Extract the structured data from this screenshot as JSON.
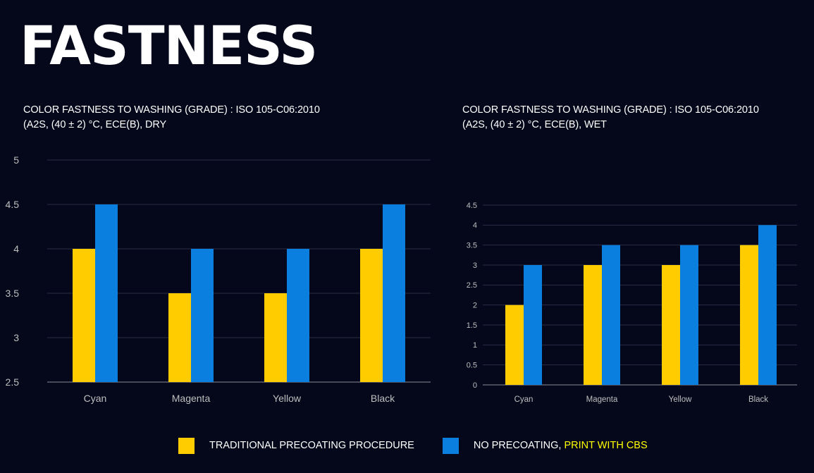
{
  "page": {
    "title": "FASTNESS"
  },
  "colors": {
    "background": "#05081b",
    "traditional": "#ffcc00",
    "cbs": "#0a7fe0",
    "highlight": "#ffff00",
    "grid": "#2a2d44",
    "axis_text": "#bfbfbf"
  },
  "legend": {
    "traditional_label": "TRADITIONAL PRECOATING PROCEDURE",
    "cbs_label_prefix": "NO PRECOATING, ",
    "cbs_label_highlight": "PRINT WITH CBS"
  },
  "chart_data": [
    {
      "type": "bar",
      "title_line1": "COLOR FASTNESS TO WASHING (GRADE) : ISO 105-C06:2010",
      "title_line2": "(A2S, (40 ± 2) °C, ECE(B), DRY",
      "categories": [
        "Cyan",
        "Magenta",
        "Yellow",
        "Black"
      ],
      "series": [
        {
          "name": "TRADITIONAL PRECOATING PROCEDURE",
          "values": [
            4,
            3.5,
            3.5,
            4
          ]
        },
        {
          "name": "NO PRECOATING, PRINT WITH CBS",
          "values": [
            4.5,
            4,
            4,
            4.5
          ]
        }
      ],
      "ylim": [
        2.5,
        5
      ],
      "yticks": [
        "2.5",
        "3",
        "3.5",
        "4",
        "4.5",
        "5"
      ],
      "grid": true
    },
    {
      "type": "bar",
      "title_line1": "COLOR FASTNESS TO WASHING (GRADE) : ISO 105-C06:2010",
      "title_line2": "(A2S, (40 ± 2) °C, ECE(B), WET",
      "categories": [
        "Cyan",
        "Magenta",
        "Yellow",
        "Black"
      ],
      "series": [
        {
          "name": "TRADITIONAL PRECOATING PROCEDURE",
          "values": [
            2,
            3,
            3,
            3.5
          ]
        },
        {
          "name": "NO PRECOATING, PRINT WITH CBS",
          "values": [
            3,
            3.5,
            3.5,
            4
          ]
        }
      ],
      "ylim": [
        0,
        4.5
      ],
      "yticks": [
        "0",
        "0.5",
        "1",
        "1.5",
        "2",
        "2.5",
        "3",
        "3.5",
        "4",
        "4.5"
      ],
      "grid": true
    }
  ]
}
